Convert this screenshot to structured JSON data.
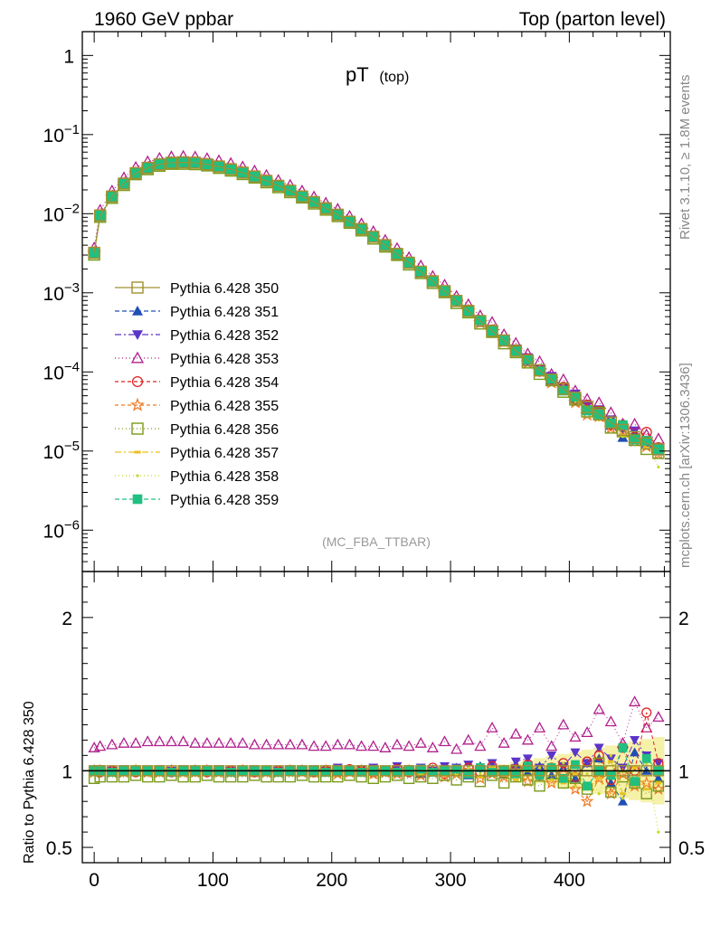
{
  "header": {
    "left": "1960 GeV ppbar",
    "right": "Top (parton level)"
  },
  "plot_title": {
    "main": "pT",
    "sub": "(top)"
  },
  "side_text": {
    "rivet": "Rivet 3.1.10, ≥ 1.8M events",
    "mcplots": "mcplots.cern.ch [arXiv:1306.3436]"
  },
  "analysis_tag": "(MC_FBA_TTBAR)",
  "ratio_ylabel": "Ratio to Pythia 6.428 350",
  "main_yticks": [
    {
      "base": "1",
      "exp": ""
    },
    {
      "base": "10",
      "exp": "−1"
    },
    {
      "base": "10",
      "exp": "−2"
    },
    {
      "base": "10",
      "exp": "−3"
    },
    {
      "base": "10",
      "exp": "−4"
    },
    {
      "base": "10",
      "exp": "−5"
    },
    {
      "base": "10",
      "exp": "−6"
    }
  ],
  "ratio_yticks": [
    "2",
    "1",
    "0.5"
  ],
  "xticks": [
    "0",
    "100",
    "200",
    "300",
    "400"
  ],
  "chart_data": {
    "type": "line",
    "main": {
      "y_scale": "log",
      "ylim": [
        3e-07,
        2.0
      ],
      "xlim": [
        -10,
        485
      ]
    },
    "ratio": {
      "ylim": [
        0.4,
        2.3
      ],
      "xlim": [
        -10,
        485
      ]
    },
    "x": [
      0,
      5,
      15,
      25,
      35,
      45,
      55,
      65,
      75,
      85,
      95,
      105,
      115,
      125,
      135,
      145,
      155,
      165,
      175,
      185,
      195,
      205,
      215,
      225,
      235,
      245,
      255,
      265,
      275,
      285,
      295,
      305,
      315,
      325,
      335,
      345,
      355,
      365,
      375,
      385,
      395,
      405,
      415,
      425,
      435,
      445,
      455,
      465,
      475
    ],
    "reference": [
      0.0032,
      0.0095,
      0.0165,
      0.024,
      0.0325,
      0.038,
      0.042,
      0.044,
      0.0445,
      0.044,
      0.042,
      0.0395,
      0.0365,
      0.033,
      0.0295,
      0.026,
      0.0225,
      0.0195,
      0.0165,
      0.014,
      0.0117,
      0.0097,
      0.0079,
      0.0064,
      0.0051,
      0.004,
      0.0031,
      0.0024,
      0.00185,
      0.0014,
      0.00105,
      0.00079,
      0.00059,
      0.00044,
      0.00033,
      0.00025,
      0.000185,
      0.00014,
      0.000105,
      8e-05,
      6.1e-05,
      4.7e-05,
      3.6e-05,
      2.9e-05,
      2.3e-05,
      1.85e-05,
      1.5e-05,
      1.25e-05,
      1.05e-05
    ],
    "series": [
      {
        "name": "Pythia 6.428 350",
        "color": "#a09030",
        "marker": "open-square",
        "dash": "",
        "ratio": [
          1.0,
          1.0,
          1.0,
          1.0,
          1.0,
          1.0,
          1.0,
          1.0,
          1.0,
          1.0,
          1.0,
          1.0,
          1.0,
          1.0,
          1.0,
          1.0,
          1.0,
          1.0,
          1.0,
          1.0,
          1.0,
          1.0,
          1.0,
          1.0,
          1.0,
          1.0,
          1.0,
          1.0,
          1.0,
          1.0,
          1.0,
          1.0,
          1.0,
          1.0,
          1.0,
          1.0,
          1.0,
          1.0,
          1.0,
          1.0,
          1.0,
          1.0,
          1.0,
          1.0,
          1.0,
          1.0,
          1.0,
          1.0,
          1.0
        ]
      },
      {
        "name": "Pythia 6.428 351",
        "color": "#1f4fb4",
        "marker": "filled-triangle-up",
        "dash": "5,3",
        "ratio": [
          1.01,
          1.0,
          0.99,
          1.0,
          1.01,
          1.0,
          0.99,
          1.0,
          1.0,
          1.01,
          1.0,
          0.99,
          1.0,
          1.01,
          1.0,
          1.0,
          0.99,
          1.0,
          1.01,
          1.0,
          1.0,
          0.99,
          1.01,
          1.0,
          1.0,
          0.99,
          1.02,
          1.0,
          0.98,
          1.01,
          1.0,
          1.02,
          0.97,
          1.03,
          1.0,
          0.98,
          1.04,
          0.99,
          1.03,
          0.97,
          1.02,
          0.95,
          1.05,
          1.08,
          0.92,
          0.8,
          1.12,
          1.0,
          0.95
        ]
      },
      {
        "name": "Pythia 6.428 352",
        "color": "#5a35c8",
        "marker": "filled-triangle-down",
        "dash": "7,3,2,3",
        "ratio": [
          1.0,
          1.01,
          1.0,
          1.01,
          1.0,
          1.0,
          1.01,
          1.0,
          1.01,
          1.0,
          1.0,
          1.01,
          1.0,
          1.0,
          1.01,
          1.0,
          1.0,
          1.01,
          1.0,
          1.01,
          1.0,
          1.02,
          1.0,
          1.01,
          1.02,
          1.0,
          1.03,
          1.01,
          1.02,
          1.0,
          1.03,
          1.02,
          1.04,
          1.01,
          1.05,
          1.0,
          1.06,
          1.08,
          1.02,
          1.1,
          1.03,
          1.12,
          1.05,
          1.15,
          1.08,
          1.02,
          1.2,
          1.1,
          1.05
        ]
      },
      {
        "name": "Pythia 6.428 353",
        "color": "#b0208c",
        "marker": "open-triangle-up",
        "dash": "1,3",
        "ratio": [
          1.15,
          1.16,
          1.17,
          1.18,
          1.18,
          1.19,
          1.19,
          1.19,
          1.19,
          1.18,
          1.18,
          1.18,
          1.18,
          1.18,
          1.17,
          1.17,
          1.17,
          1.17,
          1.17,
          1.16,
          1.16,
          1.17,
          1.17,
          1.16,
          1.16,
          1.15,
          1.17,
          1.16,
          1.18,
          1.15,
          1.19,
          1.14,
          1.2,
          1.16,
          1.28,
          1.18,
          1.24,
          1.2,
          1.28,
          1.16,
          1.3,
          1.22,
          1.25,
          1.4,
          1.32,
          1.18,
          1.45,
          1.28,
          1.35
        ]
      },
      {
        "name": "Pythia 6.428 354",
        "color": "#e02020",
        "marker": "open-circle",
        "dash": "4,3",
        "ratio": [
          1.0,
          0.99,
          1.0,
          1.0,
          0.99,
          1.0,
          1.0,
          0.99,
          1.0,
          1.0,
          0.99,
          1.0,
          1.0,
          1.0,
          0.99,
          1.0,
          1.0,
          1.0,
          1.0,
          0.99,
          1.0,
          1.0,
          1.01,
          1.0,
          0.99,
          1.0,
          1.01,
          0.99,
          1.0,
          1.02,
          0.98,
          1.0,
          1.02,
          0.99,
          1.03,
          0.98,
          1.01,
          1.04,
          0.97,
          1.02,
          1.05,
          0.96,
          1.06,
          1.1,
          0.94,
          1.15,
          1.0,
          1.38,
          1.05
        ]
      },
      {
        "name": "Pythia 6.428 355",
        "color": "#f07820",
        "marker": "open-star",
        "dash": "4,3",
        "ratio": [
          0.99,
          1.0,
          0.99,
          0.99,
          1.0,
          0.99,
          0.99,
          1.0,
          0.99,
          0.99,
          1.0,
          0.99,
          0.99,
          1.0,
          0.99,
          0.99,
          0.99,
          1.0,
          0.99,
          0.99,
          1.0,
          0.98,
          0.99,
          1.0,
          0.98,
          0.99,
          0.98,
          1.0,
          0.97,
          0.99,
          0.96,
          0.98,
          1.0,
          0.95,
          0.98,
          0.96,
          1.0,
          0.93,
          0.97,
          0.92,
          0.98,
          0.88,
          0.8,
          0.95,
          0.85,
          0.98,
          0.9,
          0.92,
          0.88
        ]
      },
      {
        "name": "Pythia 6.428 356",
        "color": "#7a9a1a",
        "marker": "open-square",
        "dash": "1,3",
        "ratio": [
          0.95,
          0.96,
          0.96,
          0.96,
          0.97,
          0.96,
          0.96,
          0.97,
          0.96,
          0.96,
          0.97,
          0.96,
          0.96,
          0.96,
          0.97,
          0.96,
          0.96,
          0.96,
          0.97,
          0.96,
          0.96,
          0.96,
          0.97,
          0.96,
          0.95,
          0.96,
          0.97,
          0.95,
          0.96,
          0.95,
          0.97,
          0.94,
          0.96,
          0.93,
          0.97,
          0.92,
          0.96,
          0.94,
          0.9,
          0.98,
          0.92,
          0.95,
          0.88,
          1.05,
          0.86,
          0.96,
          0.92,
          0.85,
          0.9
        ]
      },
      {
        "name": "Pythia 6.428 357",
        "color": "#e8c020",
        "marker": "dash-dot",
        "dash": "7,3,2,3",
        "ratio": [
          1.0,
          0.99,
          1.0,
          1.0,
          1.0,
          0.99,
          1.0,
          1.0,
          1.0,
          0.99,
          1.0,
          1.0,
          0.99,
          1.0,
          1.0,
          0.99,
          1.0,
          1.0,
          0.99,
          1.0,
          1.0,
          0.99,
          1.0,
          0.99,
          1.0,
          0.98,
          1.0,
          0.99,
          0.98,
          1.0,
          0.97,
          1.01,
          0.98,
          0.96,
          1.02,
          0.97,
          0.94,
          1.0,
          0.95,
          1.03,
          0.92,
          0.98,
          0.9,
          0.95,
          1.06,
          0.85,
          1.02,
          0.88,
          0.92
        ]
      },
      {
        "name": "Pythia 6.428 358",
        "color": "#c8d820",
        "marker": "small-dot",
        "dash": "1,3",
        "ratio": [
          1.01,
          1.0,
          1.0,
          1.01,
          1.0,
          1.0,
          1.0,
          1.01,
          1.0,
          1.0,
          1.0,
          1.0,
          1.01,
          1.0,
          1.0,
          1.0,
          1.0,
          1.0,
          1.0,
          1.0,
          1.0,
          1.0,
          0.99,
          1.0,
          1.01,
          0.99,
          1.0,
          1.02,
          0.98,
          1.0,
          1.01,
          0.97,
          1.02,
          0.98,
          1.0,
          1.03,
          0.96,
          1.0,
          1.02,
          0.94,
          1.05,
          0.9,
          0.98,
          0.85,
          1.1,
          0.82,
          0.9,
          1.05,
          0.6
        ]
      },
      {
        "name": "Pythia 6.428 359",
        "color": "#20c080",
        "marker": "filled-square",
        "dash": "5,3",
        "ratio": [
          1.0,
          1.0,
          0.99,
          1.0,
          1.0,
          1.0,
          1.0,
          0.99,
          1.0,
          1.0,
          1.0,
          1.0,
          0.99,
          1.0,
          1.0,
          1.0,
          0.99,
          1.0,
          1.0,
          1.0,
          0.99,
          1.0,
          1.0,
          0.99,
          1.0,
          1.0,
          0.99,
          1.0,
          1.01,
          0.99,
          1.0,
          1.01,
          0.98,
          1.02,
          0.99,
          1.0,
          0.98,
          1.03,
          0.97,
          1.02,
          0.95,
          1.04,
          0.9,
          1.0,
          0.97,
          1.15,
          0.93,
          1.08,
          1.0
        ]
      }
    ]
  }
}
